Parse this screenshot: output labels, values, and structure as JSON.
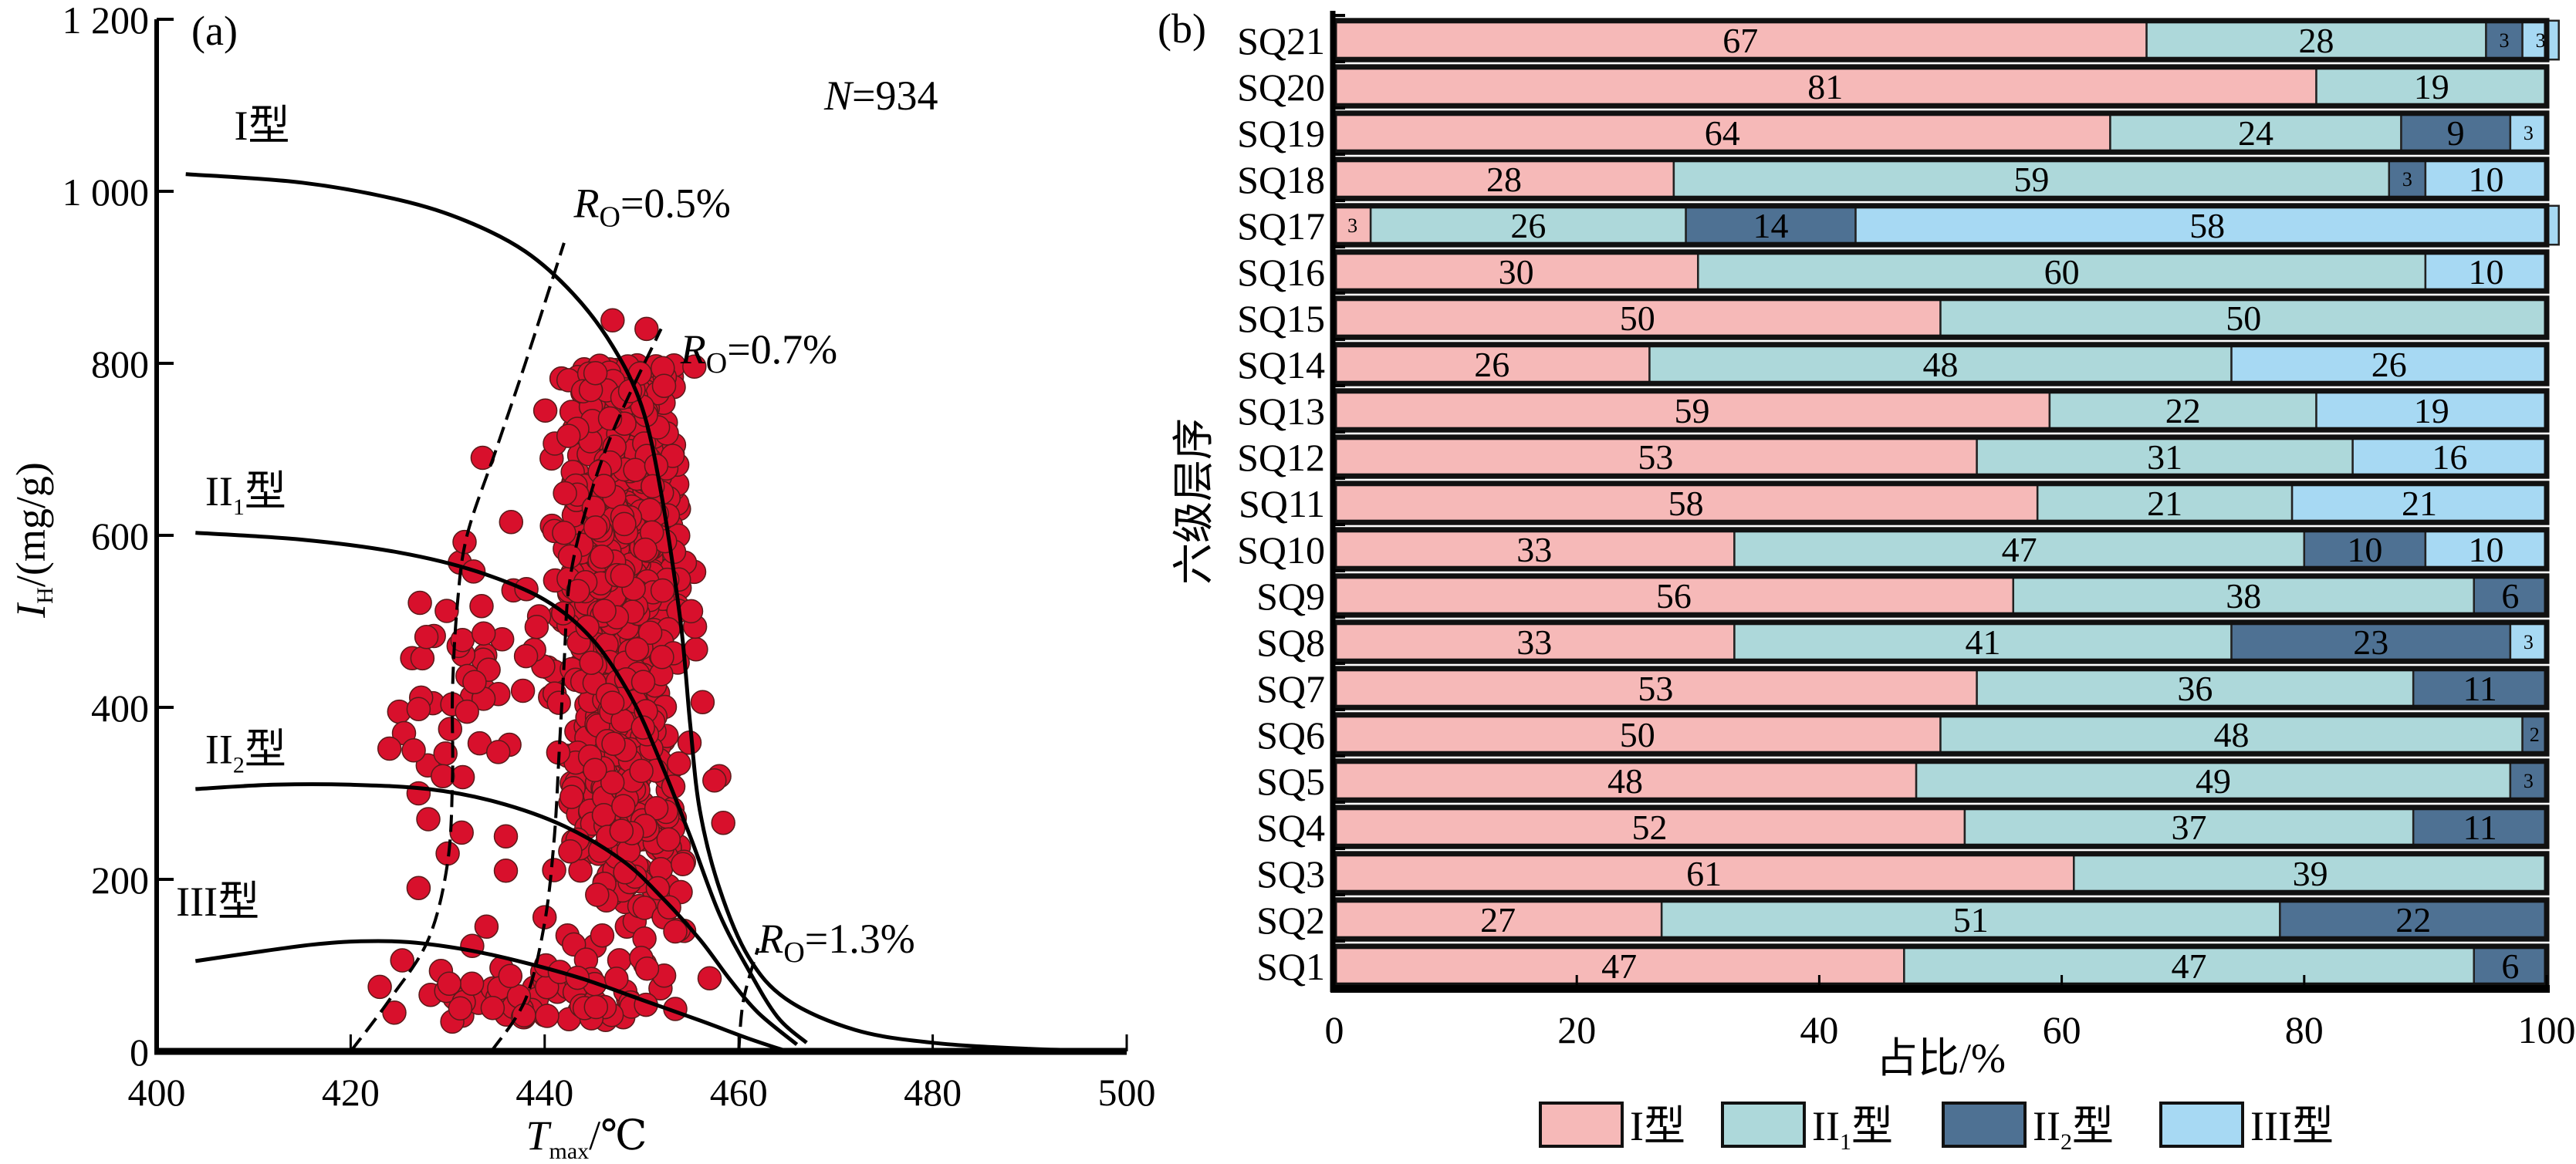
{
  "chart_data": [
    {
      "panel": "(a)",
      "type": "scatter",
      "title": "",
      "xlabel": "Tmax/℃",
      "xlabel_main": "T",
      "xlabel_sub": "max",
      "xlabel_unit": "/℃",
      "ylabel_main": "I",
      "ylabel_sub": "H",
      "ylabel_unit": "/(mg/g)",
      "xlim": [
        400,
        500
      ],
      "ylim": [
        0,
        1200
      ],
      "xticks": [
        400,
        420,
        440,
        460,
        480,
        500
      ],
      "yticks": [
        0,
        200,
        400,
        600,
        800,
        1000,
        1200
      ],
      "ytick_labels": [
        "0",
        "200",
        "400",
        "600",
        "800",
        "1 000",
        "1 200"
      ],
      "grid": false,
      "annotation_n": "N",
      "annotation_n_value": "=934",
      "point_count": 934,
      "point_color": "#D8102C",
      "type_labels": [
        {
          "main": "I",
          "sub": "",
          "suffix": "型",
          "x": 408,
          "y": 1060
        },
        {
          "main": "II",
          "sub": "1",
          "suffix": "型",
          "x": 405,
          "y": 635
        },
        {
          "main": "II",
          "sub": "2",
          "suffix": "型",
          "x": 405,
          "y": 335
        },
        {
          "main": "III",
          "sub": "",
          "suffix": "型",
          "x": 402,
          "y": 158
        }
      ],
      "ro_labels": [
        {
          "text": "R",
          "sub": "O",
          "value": "=0.5%",
          "x": 443,
          "y": 970
        },
        {
          "text": "R",
          "sub": "O",
          "value": "=0.7%",
          "x": 454,
          "y": 800
        },
        {
          "text": "R",
          "sub": "O",
          "value": "=1.3%",
          "x": 462,
          "y": 115
        }
      ],
      "type_curves": [
        {
          "name": "I型",
          "points": [
            [
              403,
              1020
            ],
            [
              415,
              1010
            ],
            [
              425,
              990
            ],
            [
              432,
              965
            ],
            [
              438,
              930
            ],
            [
              443,
              880
            ],
            [
              447,
              820
            ],
            [
              450,
              750
            ],
            [
              452,
              650
            ],
            [
              454,
              500
            ],
            [
              455,
              380
            ],
            [
              456,
              280
            ],
            [
              458,
              190
            ],
            [
              461,
              110
            ],
            [
              465,
              60
            ],
            [
              472,
              25
            ],
            [
              480,
              10
            ],
            [
              490,
              3
            ],
            [
              500,
              0
            ]
          ]
        },
        {
          "name": "II1型",
          "points": [
            [
              404,
              603
            ],
            [
              415,
              595
            ],
            [
              425,
              580
            ],
            [
              433,
              558
            ],
            [
              440,
              525
            ],
            [
              445,
              478
            ],
            [
              449,
              410
            ],
            [
              452,
              335
            ],
            [
              455,
              250
            ],
            [
              458,
              160
            ],
            [
              461,
              95
            ],
            [
              464,
              40
            ],
            [
              467,
              10
            ]
          ]
        },
        {
          "name": "II2型",
          "points": [
            [
              404,
              305
            ],
            [
              412,
              310
            ],
            [
              420,
              310
            ],
            [
              428,
              305
            ],
            [
              435,
              290
            ],
            [
              442,
              262
            ],
            [
              448,
              222
            ],
            [
              452,
              180
            ],
            [
              456,
              130
            ],
            [
              459,
              85
            ],
            [
              462,
              45
            ],
            [
              466,
              8
            ]
          ]
        },
        {
          "name": "III型",
          "points": [
            [
              404,
              105
            ],
            [
              410,
              115
            ],
            [
              416,
              124
            ],
            [
              421,
              128
            ],
            [
              426,
              127
            ],
            [
              432,
              118
            ],
            [
              438,
              103
            ],
            [
              444,
              84
            ],
            [
              450,
              60
            ],
            [
              456,
              36
            ],
            [
              461,
              15
            ],
            [
              465,
              0
            ]
          ]
        }
      ],
      "ro_curves": [
        {
          "name": "Ro=0.5%",
          "points": [
            [
              420,
              0
            ],
            [
              424,
              60
            ],
            [
              428,
              130
            ],
            [
              430,
              220
            ],
            [
              430.5,
              320
            ],
            [
              430.5,
              420
            ],
            [
              431,
              520
            ],
            [
              432,
              600
            ],
            [
              435,
              700
            ],
            [
              438,
              800
            ],
            [
              442,
              940
            ]
          ]
        },
        {
          "name": "Ro=0.7%",
          "points": [
            [
              434.5,
              0
            ],
            [
              438,
              60
            ],
            [
              440,
              150
            ],
            [
              441,
              250
            ],
            [
              441.5,
              350
            ],
            [
              442,
              450
            ],
            [
              442.5,
              540
            ],
            [
              444,
              620
            ],
            [
              447,
              720
            ],
            [
              452,
              840
            ]
          ]
        },
        {
          "name": "Ro=1.3%",
          "points": [
            [
              460,
              0
            ],
            [
              460.5,
              60
            ],
            [
              462,
              120
            ]
          ]
        }
      ],
      "point_clusters": [
        {
          "cx": 448,
          "cy": 560,
          "sx": 3.0,
          "sy": 170,
          "n": 700
        },
        {
          "cx": 449,
          "cy": 260,
          "sx": 3.0,
          "sy": 90,
          "n": 120
        },
        {
          "cx": 440,
          "cy": 60,
          "sx": 6.0,
          "sy": 25,
          "n": 70
        },
        {
          "cx": 433,
          "cy": 440,
          "sx": 3.5,
          "sy": 70,
          "n": 44
        }
      ],
      "outlier_points": [
        [
          447,
          850
        ],
        [
          450.5,
          840
        ],
        [
          441,
          605
        ],
        [
          442,
          603
        ],
        [
          425,
          395
        ],
        [
          427,
          398
        ],
        [
          425.5,
          370
        ],
        [
          424,
          352
        ],
        [
          426.5,
          350
        ],
        [
          427,
          300
        ],
        [
          429.5,
          320
        ],
        [
          428,
          270
        ],
        [
          430,
          230
        ],
        [
          427,
          190
        ],
        [
          423,
          75
        ],
        [
          424.5,
          45
        ],
        [
          458,
          320
        ],
        [
          457.5,
          315
        ],
        [
          457,
          85
        ],
        [
          434,
          145
        ],
        [
          436,
          210
        ],
        [
          436,
          250
        ],
        [
          432,
          395
        ]
      ]
    },
    {
      "panel": "(b)",
      "type": "bar",
      "orientation": "horizontal",
      "stacked": true,
      "title": "",
      "xlabel": "占比/%",
      "ylabel": "六级层序",
      "xlim": [
        0,
        100
      ],
      "xticks": [
        0,
        20,
        40,
        60,
        80,
        100
      ],
      "grid": false,
      "legend_position": "bottom",
      "categories": [
        "SQ21",
        "SQ20",
        "SQ19",
        "SQ18",
        "SQ17",
        "SQ16",
        "SQ15",
        "SQ14",
        "SQ13",
        "SQ12",
        "SQ11",
        "SQ10",
        "SQ9",
        "SQ8",
        "SQ7",
        "SQ6",
        "SQ5",
        "SQ4",
        "SQ3",
        "SQ2",
        "SQ1"
      ],
      "series": [
        {
          "name": "I型",
          "legend_main": "I",
          "legend_sub": "",
          "legend_suffix": "型",
          "color": "#F6B9B8",
          "values": [
            67,
            81,
            64,
            28,
            3,
            30,
            50,
            26,
            59,
            53,
            58,
            33,
            56,
            33,
            53,
            50,
            48,
            52,
            61,
            27,
            47
          ]
        },
        {
          "name": "II1型",
          "legend_main": "II",
          "legend_sub": "1",
          "legend_suffix": "型",
          "color": "#ADD8DA",
          "values": [
            28,
            19,
            24,
            59,
            26,
            60,
            50,
            48,
            22,
            31,
            21,
            47,
            38,
            41,
            36,
            48,
            49,
            37,
            39,
            51,
            47
          ]
        },
        {
          "name": "II2型",
          "legend_main": "II",
          "legend_sub": "2",
          "legend_suffix": "型",
          "color": "#4E7193",
          "values": [
            3,
            0,
            9,
            3,
            14,
            0,
            0,
            0,
            0,
            0,
            0,
            10,
            6,
            23,
            11,
            2,
            3,
            11,
            0,
            22,
            6
          ]
        },
        {
          "name": "III型",
          "legend_main": "III",
          "legend_sub": "",
          "legend_suffix": "型",
          "color": "#A7D9F3",
          "values": [
            3,
            0,
            3,
            10,
            58,
            10,
            0,
            26,
            19,
            16,
            21,
            10,
            0,
            3,
            0,
            0,
            0,
            0,
            0,
            0,
            0
          ]
        }
      ]
    }
  ]
}
